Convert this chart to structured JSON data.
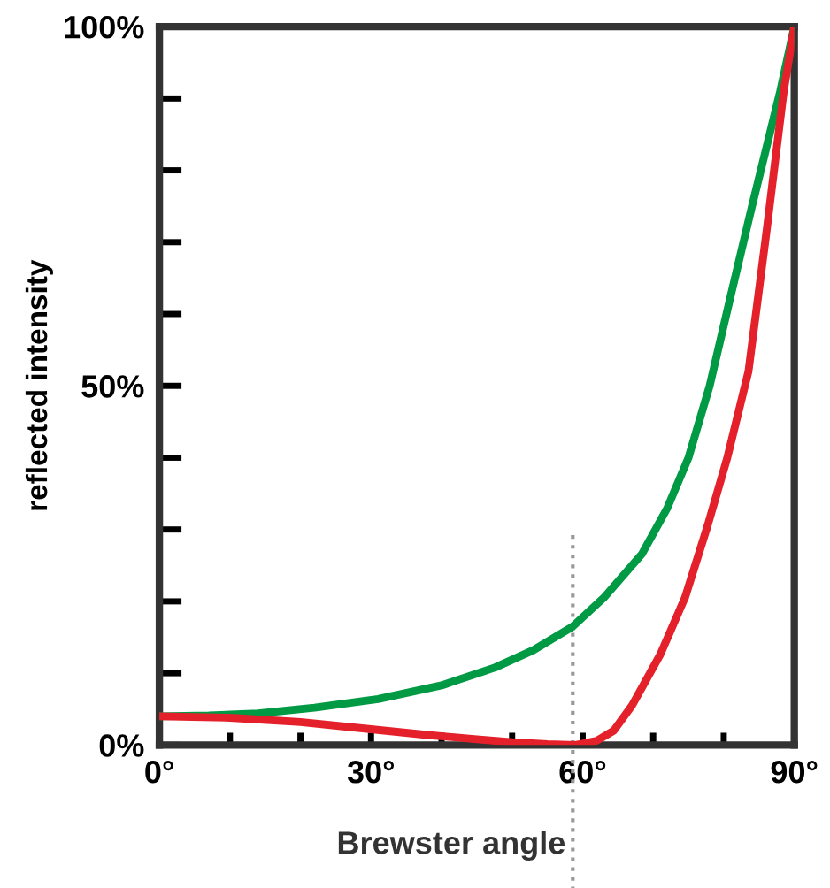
{
  "chart_data": {
    "type": "line",
    "ylabel": "reflected intensity",
    "xlim": [
      0,
      90
    ],
    "ylim": [
      0,
      100
    ],
    "xticks": [
      {
        "value": 0,
        "label": "0°"
      },
      {
        "value": 10,
        "label": null
      },
      {
        "value": 20,
        "label": null
      },
      {
        "value": 30,
        "label": "30°"
      },
      {
        "value": 40,
        "label": null
      },
      {
        "value": 50,
        "label": null
      },
      {
        "value": 60,
        "label": "60°"
      },
      {
        "value": 70,
        "label": null
      },
      {
        "value": 80,
        "label": null
      },
      {
        "value": 90,
        "label": "90°"
      }
    ],
    "yticks": [
      {
        "value": 0,
        "label": "0%"
      },
      {
        "value": 10,
        "label": null
      },
      {
        "value": 20,
        "label": null
      },
      {
        "value": 30,
        "label": null
      },
      {
        "value": 40,
        "label": null
      },
      {
        "value": 50,
        "label": "50%"
      },
      {
        "value": 60,
        "label": null
      },
      {
        "value": 70,
        "label": null
      },
      {
        "value": 80,
        "label": null
      },
      {
        "value": 90,
        "label": null
      },
      {
        "value": 100,
        "label": "100%"
      }
    ],
    "grid": false,
    "legend": false,
    "marker": "none",
    "line_style": "solid",
    "series": [
      {
        "color": "#009a44",
        "x": [
          0,
          7,
          14,
          22,
          31,
          40,
          47.6,
          53,
          58.6,
          63,
          68.4,
          72,
          75,
          78,
          81,
          84,
          86,
          88,
          90
        ],
        "values": [
          4,
          4.1,
          4.4,
          5.2,
          6.4,
          8.3,
          10.8,
          13.2,
          16.5,
          20.5,
          26.6,
          33,
          40,
          50,
          62.6,
          75,
          83,
          91,
          100
        ]
      },
      {
        "color": "#e4202a",
        "x": [
          0,
          10,
          20,
          30,
          38,
          45,
          50,
          55,
          59,
          62,
          64.4,
          67,
          71,
          74.5,
          77.7,
          80.5,
          83.5,
          86,
          88.5,
          90
        ],
        "values": [
          4,
          3.8,
          3.2,
          2.2,
          1.4,
          0.8,
          0.4,
          0.1,
          0,
          0.6,
          2,
          5.5,
          12.6,
          20.5,
          30.5,
          40,
          52,
          71,
          91,
          100
        ]
      }
    ],
    "ref_lines": [
      {
        "axis": "x",
        "value": 58.6,
        "label": "Brewster angle",
        "color": "#999999",
        "line_style": "dotted"
      }
    ]
  }
}
